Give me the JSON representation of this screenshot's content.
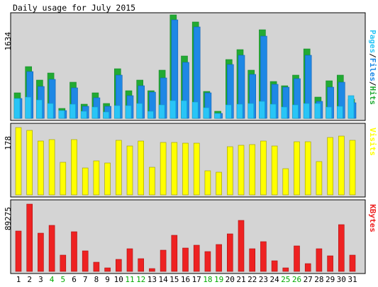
{
  "chart_data": {
    "type": "bar",
    "title": "Daily usage for July 2015",
    "categories": [
      "1",
      "2",
      "3",
      "4",
      "5",
      "6",
      "7",
      "8",
      "9",
      "10",
      "11",
      "12",
      "13",
      "14",
      "15",
      "16",
      "17",
      "18",
      "19",
      "20",
      "21",
      "22",
      "23",
      "24",
      "25",
      "26",
      "27",
      "28",
      "29",
      "30",
      "31"
    ],
    "weekend_days": [
      "4",
      "5",
      "11",
      "12",
      "18",
      "19",
      "25",
      "26"
    ],
    "panels": [
      {
        "name": "hits",
        "ylabel_parts": [
          "Pages",
          "Files",
          "Hits"
        ],
        "max_label": "1634",
        "ymax": 1634,
        "series": [
          {
            "name": "Hits",
            "color": "#22aa33",
            "values": [
              400,
              820,
              600,
              720,
              160,
              570,
              220,
              400,
              230,
              780,
              440,
              600,
              440,
              760,
              1634,
              980,
              1520,
              420,
              110,
              930,
              1090,
              760,
              1400,
              580,
              520,
              680,
              1100,
              340,
              590,
              680,
              300
            ]
          },
          {
            "name": "Files",
            "color": "#1e88e5",
            "values": [
              310,
              740,
              500,
              620,
              120,
              480,
              190,
              330,
              190,
              680,
              360,
              520,
              410,
              640,
              1560,
              880,
              1440,
              400,
              80,
              850,
              1000,
              690,
              1300,
              540,
              490,
              630,
              1000,
              270,
              490,
              570,
              250
            ]
          },
          {
            "name": "Pages",
            "color": "#29c5f6",
            "values": [
              310,
              340,
              290,
              240,
              120,
              220,
              110,
              180,
              100,
              200,
              200,
              240,
              110,
              210,
              280,
              280,
              260,
              170,
              80,
              210,
              220,
              230,
              270,
              220,
              180,
              210,
              240,
              240,
              180,
              190,
              360
            ]
          }
        ]
      },
      {
        "name": "visits",
        "ylabel_parts": [
          "Visits"
        ],
        "max_label": "178",
        "ymax": 178,
        "series": [
          {
            "name": "Visits",
            "color": "#ffff00",
            "values": [
              178,
              170,
              143,
              147,
              87,
              146,
              72,
              90,
              84,
              144,
              130,
              143,
              73,
              138,
              138,
              137,
              136,
              63,
              60,
              127,
              132,
              133,
              143,
              130,
              69,
              140,
              140,
              88,
              151,
              156,
              145
            ]
          }
        ]
      },
      {
        "name": "kbytes",
        "ylabel_parts": [
          "KBytes"
        ],
        "max_label": "89275",
        "ymax": 89275,
        "series": [
          {
            "name": "KBytes",
            "color": "#ee2222",
            "values": [
              54000,
              89275,
              51000,
              61000,
              22000,
              53000,
              27000,
              12000,
              5000,
              16000,
              30000,
              17000,
              4000,
              28000,
              48000,
              31000,
              35000,
              26000,
              36000,
              50000,
              68000,
              30000,
              39000,
              14000,
              5000,
              34000,
              10000,
              30000,
              21000,
              62000,
              22000
            ]
          }
        ]
      }
    ]
  },
  "colors": {
    "panel_bg": "#d4d4d4",
    "weekday_label": "#000000",
    "weekend_label": "#00aa00"
  }
}
